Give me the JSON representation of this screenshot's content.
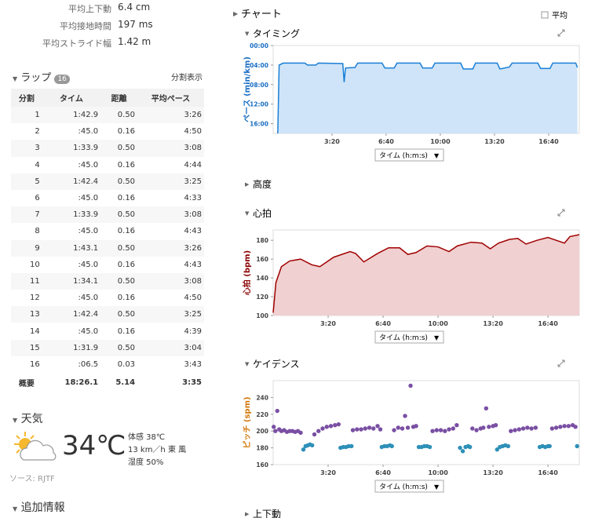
{
  "stats": [
    {
      "label": "平均上下動",
      "value": "6.4 cm"
    },
    {
      "label": "平均接地時間",
      "value": "197 ms"
    },
    {
      "label": "平均ストライド幅",
      "value": "1.42 m"
    }
  ],
  "laps": {
    "title": "ラップ",
    "count": "16",
    "toggle": "分割表示",
    "columns": [
      "分割",
      "タイム",
      "距離",
      "平均ペース"
    ],
    "rows": [
      [
        "1",
        "1:42.9",
        "0.50",
        "3:26"
      ],
      [
        "2",
        ":45.0",
        "0.16",
        "4:50"
      ],
      [
        "3",
        "1:33.9",
        "0.50",
        "3:08"
      ],
      [
        "4",
        ":45.0",
        "0.16",
        "4:44"
      ],
      [
        "5",
        "1:42.4",
        "0.50",
        "3:25"
      ],
      [
        "6",
        ":45.0",
        "0.16",
        "4:33"
      ],
      [
        "7",
        "1:33.9",
        "0.50",
        "3:08"
      ],
      [
        "8",
        ":45.0",
        "0.16",
        "4:43"
      ],
      [
        "9",
        "1:43.1",
        "0.50",
        "3:26"
      ],
      [
        "10",
        ":45.0",
        "0.16",
        "4:43"
      ],
      [
        "11",
        "1:34.1",
        "0.50",
        "3:08"
      ],
      [
        "12",
        ":45.0",
        "0.16",
        "4:50"
      ],
      [
        "13",
        "1:42.4",
        "0.50",
        "3:25"
      ],
      [
        "14",
        ":45.0",
        "0.16",
        "4:39"
      ],
      [
        "15",
        "1:31.9",
        "0.50",
        "3:04"
      ],
      [
        "16",
        ":06.5",
        "0.03",
        "3:43"
      ]
    ],
    "summary": [
      "概要",
      "18:26.1",
      "5.14",
      "3:35"
    ]
  },
  "weather": {
    "title": "天気",
    "temperature": "34℃",
    "feels": "体感 38℃",
    "wind": "13 km／h 東 風",
    "humidity": "湿度 50%",
    "source": "ソース: RJTF"
  },
  "more": "追加情報",
  "charts": {
    "title": "チャート",
    "average": "平均",
    "x_selector": "タイム (h:m:s)",
    "sections": [
      {
        "title": "タイミング",
        "chart": {
          "type": "area",
          "ylabel": "ペース (min/km)",
          "ylabel_color": "#1a6fc4",
          "y_inverted": true,
          "xlim": [
            -17,
            1113
          ],
          "xticks": [
            {
              "value": 200,
              "label": "3:20"
            },
            {
              "value": 400,
              "label": "6:40"
            },
            {
              "value": 600,
              "label": "10:00"
            },
            {
              "value": 800,
              "label": "13:20"
            },
            {
              "value": 1000,
              "label": "16:40"
            }
          ],
          "ylim": [
            0,
            18
          ],
          "yticks": [
            {
              "value": 0,
              "label": "00:00"
            },
            {
              "value": 4,
              "label": "04:00"
            },
            {
              "value": 8,
              "label": "08:00"
            },
            {
              "value": 12,
              "label": "12:00"
            },
            {
              "value": 16,
              "label": "16:00"
            }
          ],
          "series": [
            {
              "color": "#1a7fd6",
              "fill": "#cfe4f8",
              "x": [
                0,
                5,
                20,
                100,
                110,
                140,
                150,
                240,
                245,
                250,
                285,
                295,
                385,
                395,
                430,
                440,
                525,
                535,
                570,
                580,
                675,
                685,
                720,
                730,
                810,
                820,
                855,
                865,
                960,
                970,
                1005,
                1015,
                1100,
                1106
              ],
              "values": [
                18,
                4.0,
                3.6,
                3.6,
                4.0,
                4.0,
                3.6,
                3.7,
                7.5,
                4.6,
                4.5,
                3.6,
                3.6,
                4.6,
                4.6,
                3.6,
                3.6,
                4.6,
                4.6,
                3.6,
                3.6,
                4.8,
                4.8,
                3.6,
                3.6,
                4.8,
                4.4,
                3.6,
                3.6,
                4.7,
                4.7,
                3.6,
                3.6,
                4.5
              ]
            }
          ]
        }
      },
      {
        "title": "高度"
      },
      {
        "title": "心拍",
        "chart": {
          "type": "area",
          "ylabel": "心拍 (bpm)",
          "ylabel_color": "#8b0000",
          "xlim": [
            0,
            1114
          ],
          "xticks": [
            {
              "value": 200,
              "label": "3:20"
            },
            {
              "value": 400,
              "label": "6:40"
            },
            {
              "value": 600,
              "label": "10:00"
            },
            {
              "value": 800,
              "label": "13:20"
            },
            {
              "value": 1000,
              "label": "16:40"
            }
          ],
          "ylim": [
            100,
            191
          ],
          "yticks": [
            100,
            120,
            140,
            160,
            180
          ],
          "series": [
            {
              "color": "#a00000",
              "fill": "#f0d0d0",
              "x": [
                0,
                10,
                30,
                60,
                100,
                140,
                170,
                220,
                280,
                300,
                330,
                380,
                420,
                460,
                490,
                520,
                560,
                600,
                640,
                670,
                720,
                760,
                790,
                820,
                860,
                890,
                920,
                960,
                1000,
                1030,
                1060,
                1080,
                1114
              ],
              "values": [
                103,
                135,
                152,
                158,
                160,
                154,
                152,
                162,
                168,
                166,
                157,
                166,
                172,
                172,
                165,
                167,
                174,
                173,
                168,
                174,
                178,
                177,
                171,
                177,
                181,
                182,
                176,
                180,
                183,
                180,
                177,
                184,
                186
              ]
            }
          ]
        }
      },
      {
        "title": "ケイデンス",
        "chart": {
          "type": "scatter",
          "ylabel": "ピッチ (spm)",
          "ylabel_color": "#d4780a",
          "xlim": [
            0,
            1114
          ],
          "xticks": [
            {
              "value": 200,
              "label": "3:20"
            },
            {
              "value": 400,
              "label": "6:40"
            },
            {
              "value": 600,
              "label": "10:00"
            },
            {
              "value": 800,
              "label": "13:20"
            },
            {
              "value": 1000,
              "label": "16:40"
            }
          ],
          "ylim": [
            160,
            260
          ],
          "yticks": [
            160,
            180,
            200,
            220,
            240
          ],
          "series": [
            {
              "color": "#7a4fa3",
              "x": [
                2,
                8,
                15,
                22,
                30,
                40,
                50,
                60,
                70,
                80,
                90,
                100,
                150,
                165,
                180,
                195,
                210,
                225,
                238,
                290,
                305,
                320,
                335,
                350,
                365,
                380,
                390,
                440,
                455,
                470,
                480,
                490,
                500,
                510,
                520,
                580,
                595,
                610,
                625,
                640,
                655,
                668,
                725,
                740,
                755,
                765,
                775,
                785,
                800,
                810,
                865,
                880,
                895,
                910,
                925,
                940,
                955,
                1015,
                1030,
                1045,
                1060,
                1075,
                1090,
                1100
              ],
              "values": [
                205,
                200,
                224,
                202,
                200,
                201,
                199,
                200,
                200,
                199,
                200,
                198,
                196,
                200,
                203,
                205,
                206,
                207,
                208,
                201,
                202,
                202,
                203,
                204,
                203,
                206,
                202,
                201,
                204,
                203,
                218,
                204,
                254,
                205,
                206,
                200,
                201,
                201,
                200,
                202,
                203,
                207,
                203,
                201,
                203,
                204,
                227,
                205,
                206,
                207,
                200,
                201,
                202,
                203,
                204,
                203,
                204,
                203,
                204,
                205,
                206,
                206,
                207,
                205
              ]
            },
            {
              "color": "#2e90b8",
              "x": [
                110,
                118,
                126,
                134,
                142,
                245,
                255,
                265,
                275,
                285,
                395,
                405,
                415,
                425,
                432,
                530,
                540,
                550,
                560,
                570,
                680,
                690,
                700,
                710,
                716,
                815,
                825,
                835,
                845,
                855,
                970,
                980,
                990,
                1000,
                1006,
                1106
              ],
              "values": [
                178,
                182,
                183,
                184,
                183,
                180,
                181,
                181,
                182,
                182,
                181,
                182,
                182,
                183,
                182,
                181,
                181,
                182,
                182,
                181,
                180,
                176,
                181,
                182,
                181,
                178,
                181,
                182,
                183,
                182,
                181,
                182,
                181,
                182,
                182,
                182
              ]
            }
          ]
        }
      },
      {
        "title": "上下動"
      }
    ]
  }
}
